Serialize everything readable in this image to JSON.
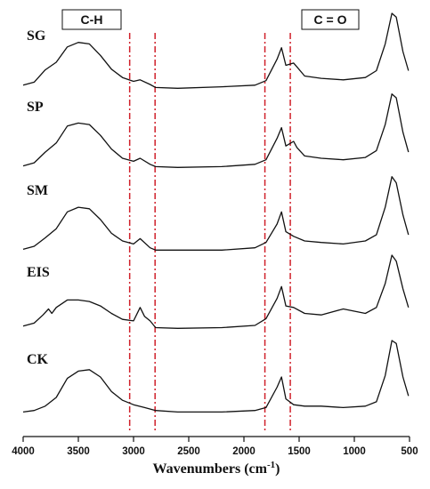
{
  "chart_data": {
    "type": "line",
    "title": "",
    "xlabel": "Wavenumbers (cm",
    "xlabel_superscript": "-1",
    "xlim": [
      4000,
      500
    ],
    "x_reversed": true,
    "xticks": [
      4000,
      3500,
      3000,
      2500,
      2000,
      1500,
      1000,
      500
    ],
    "ylabel": "",
    "grid": false,
    "band_labels": [
      {
        "label": "C-H",
        "range": [
          3050,
          2800
        ]
      },
      {
        "label": "C = O",
        "range": [
          1800,
          1570
        ]
      }
    ],
    "marker_lines": [
      3035,
      2805,
      1810,
      1580
    ],
    "series": [
      {
        "name": "SG",
        "points": [
          [
            4000,
            0.06
          ],
          [
            3900,
            0.1
          ],
          [
            3800,
            0.26
          ],
          [
            3700,
            0.36
          ],
          [
            3600,
            0.56
          ],
          [
            3500,
            0.62
          ],
          [
            3400,
            0.6
          ],
          [
            3300,
            0.45
          ],
          [
            3200,
            0.27
          ],
          [
            3100,
            0.16
          ],
          [
            3000,
            0.11
          ],
          [
            2940,
            0.13
          ],
          [
            2850,
            0.07
          ],
          [
            2800,
            0.03
          ],
          [
            2600,
            0.02
          ],
          [
            2200,
            0.04
          ],
          [
            1900,
            0.06
          ],
          [
            1800,
            0.12
          ],
          [
            1700,
            0.4
          ],
          [
            1660,
            0.55
          ],
          [
            1620,
            0.32
          ],
          [
            1550,
            0.35
          ],
          [
            1520,
            0.3
          ],
          [
            1450,
            0.18
          ],
          [
            1300,
            0.15
          ],
          [
            1100,
            0.13
          ],
          [
            900,
            0.16
          ],
          [
            800,
            0.25
          ],
          [
            720,
            0.6
          ],
          [
            660,
            1.0
          ],
          [
            620,
            0.95
          ],
          [
            560,
            0.5
          ],
          [
            510,
            0.25
          ]
        ]
      },
      {
        "name": "SP",
        "points": [
          [
            4000,
            0.04
          ],
          [
            3900,
            0.08
          ],
          [
            3800,
            0.22
          ],
          [
            3700,
            0.34
          ],
          [
            3600,
            0.56
          ],
          [
            3500,
            0.6
          ],
          [
            3400,
            0.58
          ],
          [
            3300,
            0.44
          ],
          [
            3200,
            0.26
          ],
          [
            3100,
            0.14
          ],
          [
            3000,
            0.1
          ],
          [
            2940,
            0.14
          ],
          [
            2850,
            0.06
          ],
          [
            2800,
            0.03
          ],
          [
            2600,
            0.02
          ],
          [
            2200,
            0.03
          ],
          [
            1900,
            0.06
          ],
          [
            1800,
            0.12
          ],
          [
            1700,
            0.4
          ],
          [
            1660,
            0.54
          ],
          [
            1620,
            0.3
          ],
          [
            1550,
            0.36
          ],
          [
            1520,
            0.28
          ],
          [
            1450,
            0.17
          ],
          [
            1300,
            0.14
          ],
          [
            1100,
            0.12
          ],
          [
            900,
            0.15
          ],
          [
            800,
            0.24
          ],
          [
            720,
            0.58
          ],
          [
            660,
            0.98
          ],
          [
            620,
            0.93
          ],
          [
            560,
            0.48
          ],
          [
            510,
            0.22
          ]
        ]
      },
      {
        "name": "SM",
        "points": [
          [
            4000,
            0.03
          ],
          [
            3900,
            0.07
          ],
          [
            3800,
            0.18
          ],
          [
            3700,
            0.3
          ],
          [
            3600,
            0.52
          ],
          [
            3500,
            0.58
          ],
          [
            3400,
            0.56
          ],
          [
            3300,
            0.42
          ],
          [
            3200,
            0.24
          ],
          [
            3100,
            0.14
          ],
          [
            3000,
            0.1
          ],
          [
            2940,
            0.17
          ],
          [
            2850,
            0.05
          ],
          [
            2800,
            0.02
          ],
          [
            2600,
            0.02
          ],
          [
            2200,
            0.02
          ],
          [
            1900,
            0.05
          ],
          [
            1800,
            0.12
          ],
          [
            1700,
            0.36
          ],
          [
            1660,
            0.52
          ],
          [
            1620,
            0.26
          ],
          [
            1550,
            0.2
          ],
          [
            1450,
            0.14
          ],
          [
            1300,
            0.12
          ],
          [
            1100,
            0.1
          ],
          [
            900,
            0.14
          ],
          [
            800,
            0.22
          ],
          [
            720,
            0.58
          ],
          [
            660,
            0.98
          ],
          [
            620,
            0.9
          ],
          [
            560,
            0.48
          ],
          [
            510,
            0.22
          ]
        ]
      },
      {
        "name": "EIS",
        "points": [
          [
            4000,
            0.05
          ],
          [
            3900,
            0.09
          ],
          [
            3820,
            0.2
          ],
          [
            3770,
            0.28
          ],
          [
            3740,
            0.22
          ],
          [
            3700,
            0.3
          ],
          [
            3600,
            0.4
          ],
          [
            3500,
            0.4
          ],
          [
            3400,
            0.38
          ],
          [
            3300,
            0.32
          ],
          [
            3200,
            0.22
          ],
          [
            3100,
            0.14
          ],
          [
            3000,
            0.12
          ],
          [
            2940,
            0.3
          ],
          [
            2900,
            0.18
          ],
          [
            2850,
            0.12
          ],
          [
            2800,
            0.03
          ],
          [
            2600,
            0.02
          ],
          [
            2200,
            0.03
          ],
          [
            1900,
            0.06
          ],
          [
            1800,
            0.15
          ],
          [
            1700,
            0.42
          ],
          [
            1660,
            0.58
          ],
          [
            1620,
            0.32
          ],
          [
            1550,
            0.3
          ],
          [
            1450,
            0.22
          ],
          [
            1300,
            0.2
          ],
          [
            1100,
            0.28
          ],
          [
            900,
            0.22
          ],
          [
            800,
            0.3
          ],
          [
            720,
            0.62
          ],
          [
            660,
            1.0
          ],
          [
            620,
            0.92
          ],
          [
            560,
            0.55
          ],
          [
            510,
            0.3
          ]
        ]
      },
      {
        "name": "CK",
        "points": [
          [
            4000,
            0.02
          ],
          [
            3900,
            0.04
          ],
          [
            3800,
            0.1
          ],
          [
            3700,
            0.22
          ],
          [
            3600,
            0.48
          ],
          [
            3500,
            0.58
          ],
          [
            3400,
            0.6
          ],
          [
            3300,
            0.5
          ],
          [
            3200,
            0.3
          ],
          [
            3100,
            0.18
          ],
          [
            3000,
            0.12
          ],
          [
            2900,
            0.08
          ],
          [
            2800,
            0.04
          ],
          [
            2600,
            0.02
          ],
          [
            2200,
            0.02
          ],
          [
            1900,
            0.04
          ],
          [
            1800,
            0.08
          ],
          [
            1700,
            0.36
          ],
          [
            1660,
            0.5
          ],
          [
            1620,
            0.2
          ],
          [
            1550,
            0.12
          ],
          [
            1450,
            0.1
          ],
          [
            1300,
            0.1
          ],
          [
            1100,
            0.08
          ],
          [
            900,
            0.1
          ],
          [
            800,
            0.16
          ],
          [
            720,
            0.52
          ],
          [
            660,
            1.0
          ],
          [
            620,
            0.96
          ],
          [
            560,
            0.5
          ],
          [
            510,
            0.24
          ]
        ]
      }
    ]
  }
}
